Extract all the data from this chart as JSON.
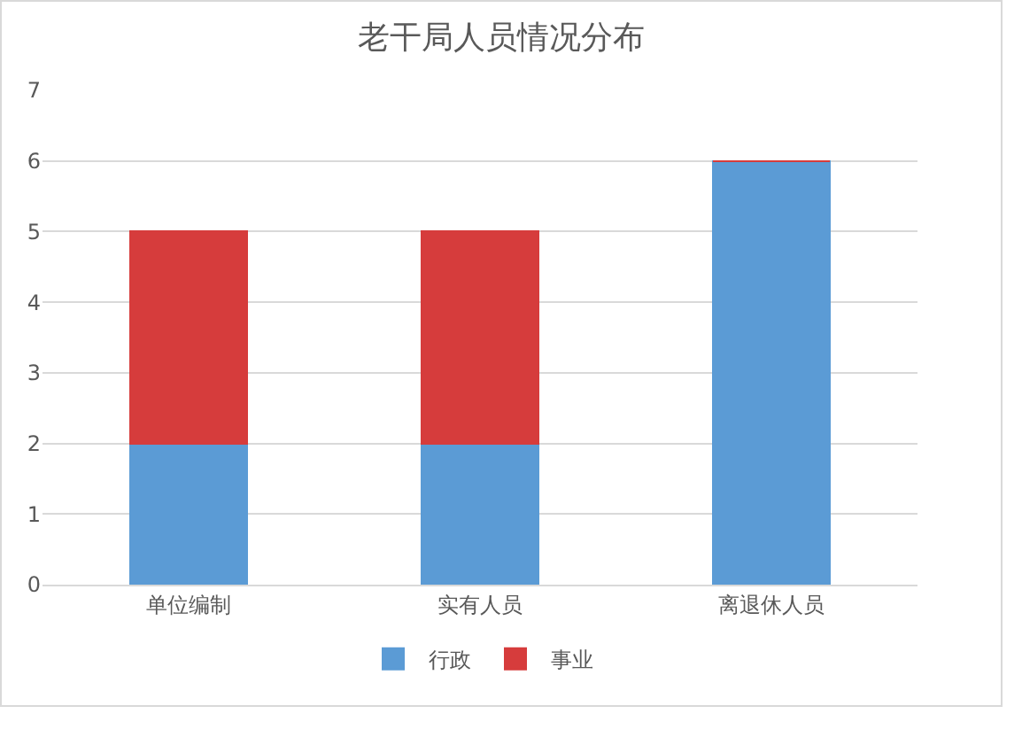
{
  "chart_data": {
    "type": "bar",
    "title": "老干局人员情况分布",
    "categories": [
      "单位编制",
      "实有人员",
      "离退休人员"
    ],
    "series": [
      {
        "name": "行政",
        "color": "#5b9bd5",
        "values": [
          2,
          2,
          6
        ]
      },
      {
        "name": "事业",
        "color": "#d63c3c",
        "values": [
          3,
          3,
          0
        ]
      }
    ],
    "stacked": true,
    "ylim": [
      0,
      7
    ],
    "yticks": [
      0,
      1,
      2,
      3,
      4,
      5,
      6,
      7
    ],
    "grid": "y",
    "legend": "bottom"
  }
}
